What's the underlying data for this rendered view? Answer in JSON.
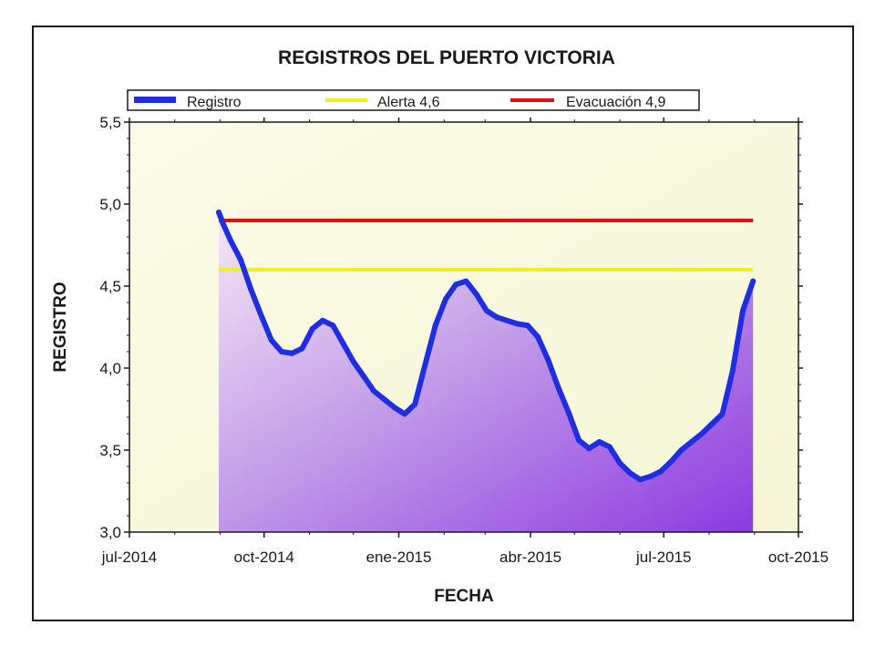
{
  "chart_data": {
    "type": "line",
    "title": "REGISTROS DEL PUERTO VICTORIA",
    "xlabel": "FECHA",
    "ylabel": "REGISTRO",
    "x_ticks": [
      "jul-2014",
      "oct-2014",
      "ene-2015",
      "abr-2015",
      "jul-2015",
      "oct-2015"
    ],
    "y_ticks": [
      "3,0",
      "3,5",
      "4,0",
      "4,5",
      "5,0",
      "5,5"
    ],
    "xlim": [
      "2014-07-01",
      "2015-10-01"
    ],
    "ylim": [
      3.0,
      5.5
    ],
    "grid": false,
    "legend_position": "top",
    "series": [
      {
        "name": "Registro",
        "color": "#1f2fe0",
        "fill": "purple-gradient",
        "x": [
          "2014-08-31",
          "2014-09-03",
          "2014-09-08",
          "2014-09-15",
          "2014-09-22",
          "2014-09-29",
          "2014-10-06",
          "2014-10-13",
          "2014-10-20",
          "2014-10-27",
          "2014-11-03",
          "2014-11-10",
          "2014-11-17",
          "2014-11-24",
          "2014-12-01",
          "2014-12-08",
          "2014-12-15",
          "2014-12-22",
          "2014-12-29",
          "2015-01-05",
          "2015-01-12",
          "2015-01-19",
          "2015-01-26",
          "2015-02-02",
          "2015-02-09",
          "2015-02-16",
          "2015-02-23",
          "2015-03-02",
          "2015-03-09",
          "2015-03-16",
          "2015-03-23",
          "2015-03-30",
          "2015-04-06",
          "2015-04-13",
          "2015-04-20",
          "2015-04-27",
          "2015-05-04",
          "2015-05-11",
          "2015-05-18",
          "2015-05-25",
          "2015-06-01",
          "2015-06-08",
          "2015-06-15",
          "2015-06-22",
          "2015-06-29",
          "2015-07-06",
          "2015-07-13",
          "2015-07-20",
          "2015-07-27",
          "2015-08-03",
          "2015-08-10",
          "2015-08-17",
          "2015-08-24",
          "2015-08-31"
        ],
        "values": [
          4.95,
          4.88,
          4.78,
          4.66,
          4.48,
          4.32,
          4.17,
          4.1,
          4.09,
          4.12,
          4.24,
          4.29,
          4.26,
          4.15,
          4.04,
          3.95,
          3.86,
          3.81,
          3.76,
          3.72,
          3.78,
          4.02,
          4.26,
          4.42,
          4.51,
          4.53,
          4.45,
          4.35,
          4.31,
          4.29,
          4.27,
          4.26,
          4.19,
          4.05,
          3.88,
          3.73,
          3.56,
          3.51,
          3.55,
          3.52,
          3.42,
          3.36,
          3.32,
          3.34,
          3.37,
          3.43,
          3.5,
          3.55,
          3.6,
          3.66,
          3.72,
          3.98,
          4.35,
          4.53
        ]
      },
      {
        "name": "Alerta 4,6",
        "color": "#f0f020",
        "x": [
          "2014-08-31",
          "2015-08-31"
        ],
        "values": [
          4.6,
          4.6
        ]
      },
      {
        "name": "Evacuación 4,9",
        "color": "#e01010",
        "x": [
          "2014-08-31",
          "2015-08-31"
        ],
        "values": [
          4.9,
          4.9
        ]
      }
    ]
  }
}
